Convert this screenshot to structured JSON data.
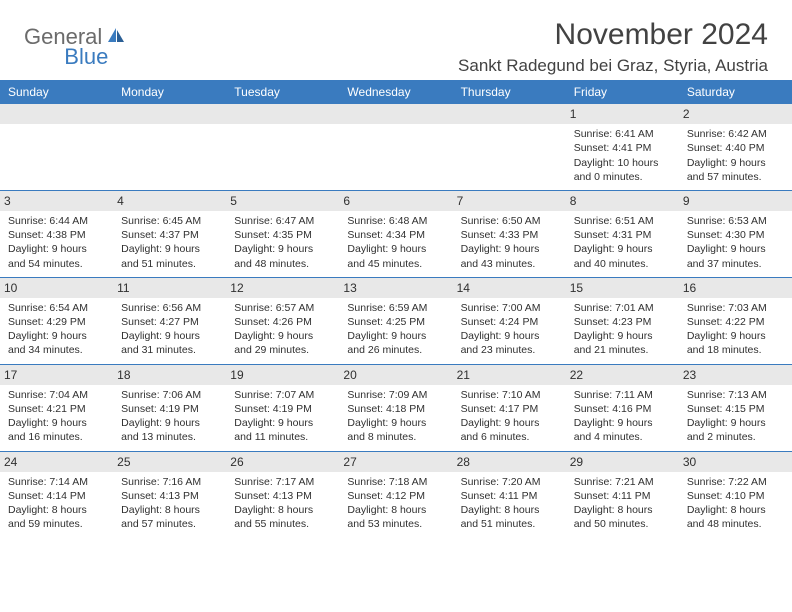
{
  "logo": {
    "text1": "General",
    "text2": "Blue"
  },
  "title": "November 2024",
  "location": "Sankt Radegund bei Graz, Styria, Austria",
  "colors": {
    "header_bg": "#3a7bbf",
    "header_text": "#ffffff",
    "daynum_bg": "#e8e8e8",
    "body_text": "#303030",
    "title_text": "#424242",
    "rule": "#3a7bbf"
  },
  "day_headers": [
    "Sunday",
    "Monday",
    "Tuesday",
    "Wednesday",
    "Thursday",
    "Friday",
    "Saturday"
  ],
  "weeks": [
    [
      {
        "n": "",
        "sunrise": "",
        "sunset": "",
        "daylight": ""
      },
      {
        "n": "",
        "sunrise": "",
        "sunset": "",
        "daylight": ""
      },
      {
        "n": "",
        "sunrise": "",
        "sunset": "",
        "daylight": ""
      },
      {
        "n": "",
        "sunrise": "",
        "sunset": "",
        "daylight": ""
      },
      {
        "n": "",
        "sunrise": "",
        "sunset": "",
        "daylight": ""
      },
      {
        "n": "1",
        "sunrise": "Sunrise: 6:41 AM",
        "sunset": "Sunset: 4:41 PM",
        "daylight": "Daylight: 10 hours and 0 minutes."
      },
      {
        "n": "2",
        "sunrise": "Sunrise: 6:42 AM",
        "sunset": "Sunset: 4:40 PM",
        "daylight": "Daylight: 9 hours and 57 minutes."
      }
    ],
    [
      {
        "n": "3",
        "sunrise": "Sunrise: 6:44 AM",
        "sunset": "Sunset: 4:38 PM",
        "daylight": "Daylight: 9 hours and 54 minutes."
      },
      {
        "n": "4",
        "sunrise": "Sunrise: 6:45 AM",
        "sunset": "Sunset: 4:37 PM",
        "daylight": "Daylight: 9 hours and 51 minutes."
      },
      {
        "n": "5",
        "sunrise": "Sunrise: 6:47 AM",
        "sunset": "Sunset: 4:35 PM",
        "daylight": "Daylight: 9 hours and 48 minutes."
      },
      {
        "n": "6",
        "sunrise": "Sunrise: 6:48 AM",
        "sunset": "Sunset: 4:34 PM",
        "daylight": "Daylight: 9 hours and 45 minutes."
      },
      {
        "n": "7",
        "sunrise": "Sunrise: 6:50 AM",
        "sunset": "Sunset: 4:33 PM",
        "daylight": "Daylight: 9 hours and 43 minutes."
      },
      {
        "n": "8",
        "sunrise": "Sunrise: 6:51 AM",
        "sunset": "Sunset: 4:31 PM",
        "daylight": "Daylight: 9 hours and 40 minutes."
      },
      {
        "n": "9",
        "sunrise": "Sunrise: 6:53 AM",
        "sunset": "Sunset: 4:30 PM",
        "daylight": "Daylight: 9 hours and 37 minutes."
      }
    ],
    [
      {
        "n": "10",
        "sunrise": "Sunrise: 6:54 AM",
        "sunset": "Sunset: 4:29 PM",
        "daylight": "Daylight: 9 hours and 34 minutes."
      },
      {
        "n": "11",
        "sunrise": "Sunrise: 6:56 AM",
        "sunset": "Sunset: 4:27 PM",
        "daylight": "Daylight: 9 hours and 31 minutes."
      },
      {
        "n": "12",
        "sunrise": "Sunrise: 6:57 AM",
        "sunset": "Sunset: 4:26 PM",
        "daylight": "Daylight: 9 hours and 29 minutes."
      },
      {
        "n": "13",
        "sunrise": "Sunrise: 6:59 AM",
        "sunset": "Sunset: 4:25 PM",
        "daylight": "Daylight: 9 hours and 26 minutes."
      },
      {
        "n": "14",
        "sunrise": "Sunrise: 7:00 AM",
        "sunset": "Sunset: 4:24 PM",
        "daylight": "Daylight: 9 hours and 23 minutes."
      },
      {
        "n": "15",
        "sunrise": "Sunrise: 7:01 AM",
        "sunset": "Sunset: 4:23 PM",
        "daylight": "Daylight: 9 hours and 21 minutes."
      },
      {
        "n": "16",
        "sunrise": "Sunrise: 7:03 AM",
        "sunset": "Sunset: 4:22 PM",
        "daylight": "Daylight: 9 hours and 18 minutes."
      }
    ],
    [
      {
        "n": "17",
        "sunrise": "Sunrise: 7:04 AM",
        "sunset": "Sunset: 4:21 PM",
        "daylight": "Daylight: 9 hours and 16 minutes."
      },
      {
        "n": "18",
        "sunrise": "Sunrise: 7:06 AM",
        "sunset": "Sunset: 4:19 PM",
        "daylight": "Daylight: 9 hours and 13 minutes."
      },
      {
        "n": "19",
        "sunrise": "Sunrise: 7:07 AM",
        "sunset": "Sunset: 4:19 PM",
        "daylight": "Daylight: 9 hours and 11 minutes."
      },
      {
        "n": "20",
        "sunrise": "Sunrise: 7:09 AM",
        "sunset": "Sunset: 4:18 PM",
        "daylight": "Daylight: 9 hours and 8 minutes."
      },
      {
        "n": "21",
        "sunrise": "Sunrise: 7:10 AM",
        "sunset": "Sunset: 4:17 PM",
        "daylight": "Daylight: 9 hours and 6 minutes."
      },
      {
        "n": "22",
        "sunrise": "Sunrise: 7:11 AM",
        "sunset": "Sunset: 4:16 PM",
        "daylight": "Daylight: 9 hours and 4 minutes."
      },
      {
        "n": "23",
        "sunrise": "Sunrise: 7:13 AM",
        "sunset": "Sunset: 4:15 PM",
        "daylight": "Daylight: 9 hours and 2 minutes."
      }
    ],
    [
      {
        "n": "24",
        "sunrise": "Sunrise: 7:14 AM",
        "sunset": "Sunset: 4:14 PM",
        "daylight": "Daylight: 8 hours and 59 minutes."
      },
      {
        "n": "25",
        "sunrise": "Sunrise: 7:16 AM",
        "sunset": "Sunset: 4:13 PM",
        "daylight": "Daylight: 8 hours and 57 minutes."
      },
      {
        "n": "26",
        "sunrise": "Sunrise: 7:17 AM",
        "sunset": "Sunset: 4:13 PM",
        "daylight": "Daylight: 8 hours and 55 minutes."
      },
      {
        "n": "27",
        "sunrise": "Sunrise: 7:18 AM",
        "sunset": "Sunset: 4:12 PM",
        "daylight": "Daylight: 8 hours and 53 minutes."
      },
      {
        "n": "28",
        "sunrise": "Sunrise: 7:20 AM",
        "sunset": "Sunset: 4:11 PM",
        "daylight": "Daylight: 8 hours and 51 minutes."
      },
      {
        "n": "29",
        "sunrise": "Sunrise: 7:21 AM",
        "sunset": "Sunset: 4:11 PM",
        "daylight": "Daylight: 8 hours and 50 minutes."
      },
      {
        "n": "30",
        "sunrise": "Sunrise: 7:22 AM",
        "sunset": "Sunset: 4:10 PM",
        "daylight": "Daylight: 8 hours and 48 minutes."
      }
    ]
  ]
}
